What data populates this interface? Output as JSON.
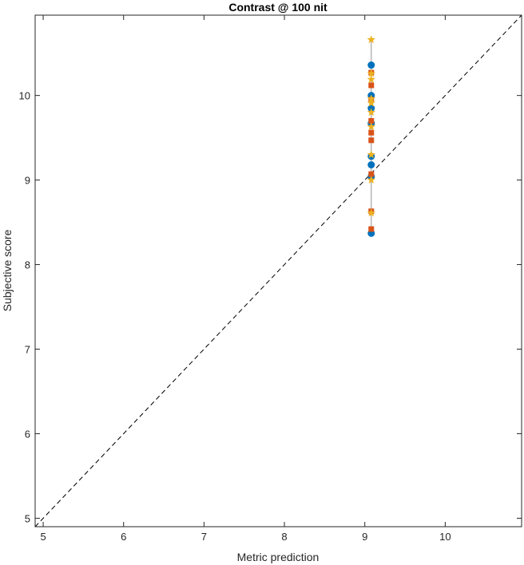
{
  "chart_data": {
    "type": "scatter",
    "title": "Contrast @ 100 nit",
    "xlabel": "Metric prediction",
    "ylabel": "Subjective score",
    "xlim": [
      4.9,
      10.95
    ],
    "ylim": [
      4.9,
      10.95
    ],
    "x_ticks": [
      5,
      6,
      7,
      8,
      9,
      10
    ],
    "y_ticks": [
      5,
      6,
      7,
      8,
      9,
      10
    ],
    "grid": false,
    "reference_line": {
      "style": "dashed",
      "slope": 1,
      "intercept": 0
    },
    "error_bar": {
      "x": 9.08,
      "y_min": 8.37,
      "y_max": 10.66
    },
    "series": [
      {
        "marker": "circle",
        "color": "#0072BD",
        "points": [
          [
            9.08,
            10.36
          ],
          [
            9.08,
            10.0
          ],
          [
            9.08,
            9.85
          ],
          [
            9.08,
            9.67
          ],
          [
            9.08,
            9.28
          ],
          [
            9.08,
            9.18
          ],
          [
            9.08,
            9.04
          ],
          [
            9.08,
            8.37
          ]
        ]
      },
      {
        "marker": "square",
        "color": "#D95319",
        "points": [
          [
            9.08,
            10.27
          ],
          [
            9.08,
            10.12
          ],
          [
            9.08,
            9.95
          ],
          [
            9.08,
            9.7
          ],
          [
            9.08,
            9.56
          ],
          [
            9.08,
            9.47
          ],
          [
            9.08,
            9.07
          ],
          [
            9.08,
            8.63
          ],
          [
            9.08,
            8.42
          ]
        ]
      },
      {
        "marker": "star",
        "color": "#EDB120",
        "points": [
          [
            9.08,
            10.66
          ],
          [
            9.08,
            10.26
          ],
          [
            9.08,
            10.19
          ],
          [
            9.08,
            9.96
          ],
          [
            9.08,
            9.91
          ],
          [
            9.08,
            9.8
          ],
          [
            9.08,
            9.63
          ],
          [
            9.08,
            9.3
          ],
          [
            9.08,
            9.0
          ],
          [
            9.08,
            8.61
          ]
        ]
      }
    ]
  }
}
